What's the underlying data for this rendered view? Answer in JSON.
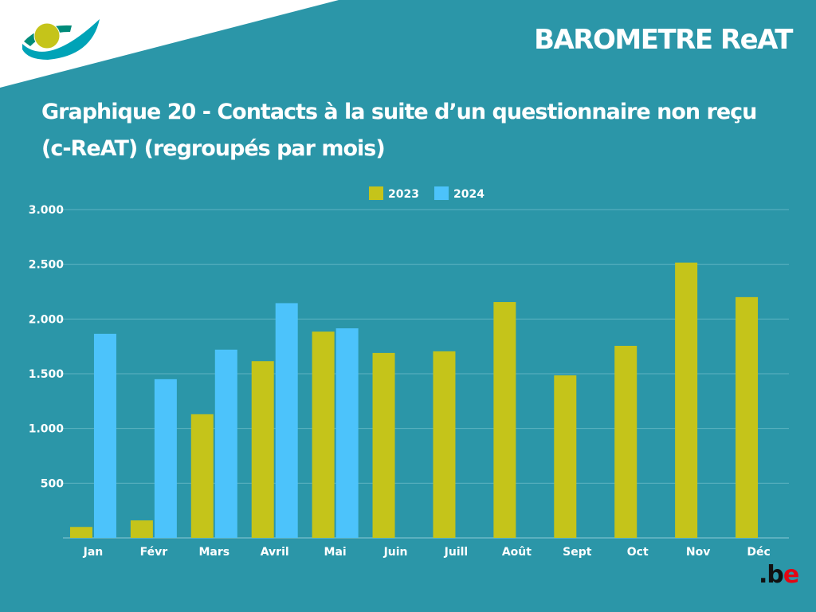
{
  "header": {
    "brand": "BAROMETRE ReAT",
    "logo_text": ".be"
  },
  "colors": {
    "background": "#2b96a8",
    "s2023": "#c5c41a",
    "s2024": "#4cc3fb"
  },
  "chart_data": {
    "type": "bar",
    "title": "Graphique 20  -  Contacts à la suite d’un questionnaire non reçu (c-ReAT) (regroupés par mois)",
    "categories": [
      "Jan",
      "Févr",
      "Mars",
      "Avril",
      "Mai",
      "Juin",
      "Juill",
      "Août",
      "Sept",
      "Oct",
      "Nov",
      "Déc"
    ],
    "series": [
      {
        "name": "2023",
        "values": [
          100,
          160,
          1130,
          1615,
          1885,
          1690,
          1705,
          2155,
          1485,
          1755,
          2515,
          2200
        ]
      },
      {
        "name": "2024",
        "values": [
          1865,
          1450,
          1720,
          2145,
          1915,
          null,
          null,
          null,
          null,
          null,
          null,
          null
        ]
      }
    ],
    "yticks": [
      500,
      1000,
      1500,
      2000,
      2500,
      3000
    ],
    "ytick_labels": [
      "500",
      "1.000",
      "1.500",
      "2.000",
      "2.500",
      "3.000"
    ],
    "ylim": [
      0,
      3000
    ],
    "grid": true,
    "legend": "top-center",
    "xlabel": "",
    "ylabel": ""
  }
}
